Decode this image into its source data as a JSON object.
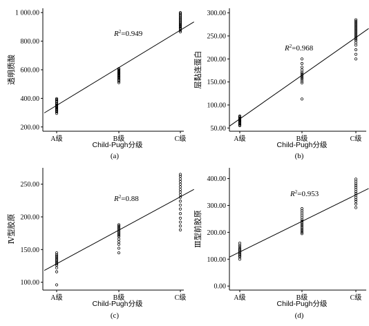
{
  "chart_data": [
    {
      "type": "scatter",
      "panel_label": "(a)",
      "xlabel": "Child-Pugh分级",
      "ylabel": "透明质酸",
      "categories": [
        "A级",
        "B级",
        "C级"
      ],
      "yticks": [
        "200.00",
        "400.00",
        "600.00",
        "800.00",
        "1 000.00"
      ],
      "ylim": [
        170,
        1030
      ],
      "r2_prefix": "R",
      "r2_sup": "2",
      "r2_value": "=0.949",
      "fit_line": {
        "start": [
          -0.2,
          298
        ],
        "end": [
          2.22,
          935
        ]
      },
      "points": [
        {
          "category": "A级",
          "values": [
            295,
            305,
            312,
            318,
            322,
            328,
            335,
            340,
            345,
            350,
            355,
            362,
            370,
            378,
            385,
            392,
            398
          ]
        },
        {
          "category": "B级",
          "values": [
            510,
            520,
            528,
            535,
            542,
            548,
            555,
            560,
            566,
            572,
            578,
            584,
            590,
            596,
            602,
            608
          ]
        },
        {
          "category": "C级",
          "values": [
            865,
            875,
            885,
            892,
            898,
            905,
            912,
            918,
            925,
            932,
            940,
            948,
            955,
            962,
            970,
            978,
            985,
            993,
            1000
          ]
        }
      ]
    },
    {
      "type": "scatter",
      "panel_label": "(b)",
      "xlabel": "Child-Pugh分级",
      "ylabel": "层黏连蛋白",
      "categories": [
        "A级",
        "B级",
        "C级"
      ],
      "yticks": [
        "50.00",
        "100.00",
        "150.00",
        "200.00",
        "250.00",
        "300.00"
      ],
      "ylim": [
        43,
        310
      ],
      "r2_prefix": "R",
      "r2_sup": "2",
      "r2_value": "=0.968",
      "fit_line": {
        "start": [
          -0.2,
          54
        ],
        "end": [
          2.22,
          266
        ]
      },
      "points": [
        {
          "category": "A级",
          "values": [
            55,
            57,
            59,
            61,
            63,
            64,
            66,
            67,
            68,
            70,
            72,
            74,
            76
          ]
        },
        {
          "category": "B级",
          "values": [
            113,
            148,
            152,
            156,
            159,
            162,
            165,
            168,
            171,
            176,
            182,
            190,
            200
          ]
        },
        {
          "category": "C级",
          "values": [
            200,
            210,
            220,
            230,
            235,
            240,
            243,
            246,
            249,
            252,
            255,
            258,
            261,
            264,
            267,
            270,
            273,
            276,
            279,
            282,
            285
          ]
        }
      ]
    },
    {
      "type": "scatter",
      "panel_label": "(c)",
      "xlabel": "Child-Pugh分级",
      "ylabel": "Ⅳ型胶原",
      "categories": [
        "A级",
        "B级",
        "C级"
      ],
      "yticks": [
        "100.00",
        "150.00",
        "200.00",
        "250.00"
      ],
      "ylim": [
        88,
        275
      ],
      "r2_prefix": "R",
      "r2_sup": "2",
      "r2_value": "=0.88",
      "fit_line": {
        "start": [
          -0.2,
          118
        ],
        "end": [
          2.22,
          242
        ]
      },
      "points": [
        {
          "category": "A级",
          "values": [
            96,
            116,
            122,
            126,
            128,
            130,
            132,
            134,
            136,
            138,
            140,
            142,
            145
          ]
        },
        {
          "category": "B级",
          "values": [
            145,
            152,
            158,
            162,
            166,
            170,
            172,
            174,
            176,
            178,
            180,
            182,
            184,
            186,
            188
          ]
        },
        {
          "category": "C级",
          "values": [
            180,
            186,
            192,
            198,
            205,
            212,
            218,
            224,
            230,
            234,
            238,
            242,
            246,
            250,
            254,
            258,
            262,
            265
          ]
        }
      ]
    },
    {
      "type": "scatter",
      "panel_label": "(d)",
      "xlabel": "Child-Pugh分级",
      "ylabel": "Ⅲ型前胶原",
      "categories": [
        "A级",
        "B级",
        "C级"
      ],
      "yticks": [
        "0.00",
        "100.00",
        "200.00",
        "300.00",
        "400.00"
      ],
      "ylim": [
        -15,
        440
      ],
      "r2_prefix": "R",
      "r2_sup": "2",
      "r2_value": "=0.953",
      "fit_line": {
        "start": [
          -0.2,
          108
        ],
        "end": [
          2.22,
          363
        ]
      },
      "points": [
        {
          "category": "A级",
          "values": [
            100,
            108,
            112,
            116,
            120,
            124,
            128,
            132,
            136,
            140,
            146,
            152,
            160
          ]
        },
        {
          "category": "B级",
          "values": [
            195,
            200,
            206,
            212,
            218,
            224,
            230,
            236,
            242,
            248,
            256,
            264,
            272,
            280,
            288
          ]
        },
        {
          "category": "C级",
          "values": [
            292,
            305,
            315,
            322,
            330,
            338,
            345,
            352,
            360,
            368,
            375,
            382,
            390,
            398
          ]
        }
      ]
    }
  ]
}
